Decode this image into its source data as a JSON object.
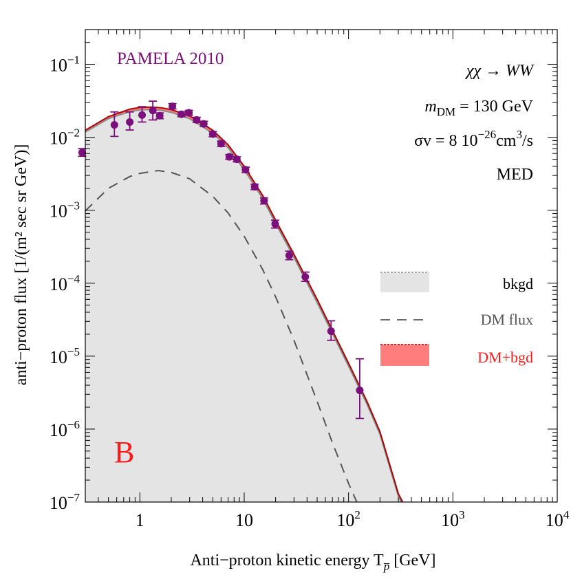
{
  "chart_data": {
    "type": "line",
    "xscale": "log",
    "yscale": "log",
    "xlim": [
      0.3,
      10000
    ],
    "ylim": [
      1e-07,
      0.3
    ],
    "xlabel": "Anti−proton kinetic energy T",
    "xlabel_sub": "p̅",
    "xlabel_unit": " [GeV]",
    "ylabel": "anti−proton flux [1/(m² sec sr GeV)]",
    "x_ticks": [
      {
        "value": 1,
        "label": "1"
      },
      {
        "value": 10,
        "label": "10"
      },
      {
        "value": 100,
        "base": "10",
        "exp": "2"
      },
      {
        "value": 1000,
        "base": "10",
        "exp": "3"
      },
      {
        "value": 10000,
        "base": "10",
        "exp": "4"
      }
    ],
    "y_ticks": [
      {
        "value": 0.1,
        "base": "10",
        "exp": "−1"
      },
      {
        "value": 0.01,
        "base": "10",
        "exp": "−2"
      },
      {
        "value": 0.001,
        "base": "10",
        "exp": "−3"
      },
      {
        "value": 0.0001,
        "base": "10",
        "exp": "−4"
      },
      {
        "value": 1e-05,
        "base": "10",
        "exp": "−5"
      },
      {
        "value": 1e-06,
        "base": "10",
        "exp": "−6"
      },
      {
        "value": 1e-07,
        "base": "10",
        "exp": "−7"
      }
    ],
    "data_label": "PAMELA 2010",
    "panel_label": "B",
    "annotations": {
      "process": "χχ → WW",
      "mass_label": "m",
      "mass_sub": "DM",
      "mass_value": " = 130 GeV",
      "xsec_label": "σv = 8 10",
      "xsec_exp": "−26",
      "xsec_unit": "cm",
      "xsec_unit_exp": "3",
      "xsec_tail": "/s",
      "model": "MED"
    },
    "legend": {
      "position": "right",
      "entries": [
        {
          "label": "bkgd",
          "style": "band",
          "color": "#e4e4e4"
        },
        {
          "label": "DM flux",
          "style": "dashed",
          "color": "#555555"
        },
        {
          "label": "DM+bgd",
          "style": "band",
          "color": "#ff7d7d"
        }
      ]
    },
    "colors": {
      "data": "#7b0f7b",
      "band_bkgd": "#e4e4e4",
      "band_total": "#ff7d7d",
      "line_total": "#b00000",
      "dm_dashed": "#555555",
      "label_text": "#7b0f7b",
      "panel_label": "#ff1a1a",
      "legend_dmbgd_text": "#ff1a1a",
      "legend_dmflux_text": "#555555"
    },
    "series": [
      {
        "name": "PAMELA 2010",
        "type": "scatter_errorbars",
        "points": [
          {
            "x": 0.28,
            "y": 0.0062,
            "ylo": 0.0055,
            "yhi": 0.007
          },
          {
            "x": 0.57,
            "y": 0.0148,
            "ylo": 0.0103,
            "yhi": 0.0223
          },
          {
            "x": 0.8,
            "y": 0.0162,
            "ylo": 0.0126,
            "yhi": 0.0223
          },
          {
            "x": 1.05,
            "y": 0.0202,
            "ylo": 0.0162,
            "yhi": 0.0263
          },
          {
            "x": 1.33,
            "y": 0.0233,
            "ylo": 0.0173,
            "yhi": 0.0313
          },
          {
            "x": 1.55,
            "y": 0.0198,
            "ylo": 0.018,
            "yhi": 0.0216
          },
          {
            "x": 2.05,
            "y": 0.0266,
            "ylo": 0.0245,
            "yhi": 0.029
          },
          {
            "x": 2.5,
            "y": 0.0207,
            "ylo": 0.0192,
            "yhi": 0.0224
          },
          {
            "x": 2.95,
            "y": 0.0217,
            "ylo": 0.0201,
            "yhi": 0.0234
          },
          {
            "x": 3.5,
            "y": 0.0173,
            "ylo": 0.016,
            "yhi": 0.0188
          },
          {
            "x": 4.1,
            "y": 0.0153,
            "ylo": 0.0141,
            "yhi": 0.0166
          },
          {
            "x": 5.0,
            "y": 0.0111,
            "ylo": 0.0102,
            "yhi": 0.012
          },
          {
            "x": 6.0,
            "y": 0.0082,
            "ylo": 0.0075,
            "yhi": 0.0089
          },
          {
            "x": 7.2,
            "y": 0.0054,
            "ylo": 0.005,
            "yhi": 0.0058
          },
          {
            "x": 8.5,
            "y": 0.005,
            "ylo": 0.0046,
            "yhi": 0.0054
          },
          {
            "x": 10.3,
            "y": 0.0036,
            "ylo": 0.0033,
            "yhi": 0.0039
          },
          {
            "x": 12.6,
            "y": 0.0021,
            "ylo": 0.00192,
            "yhi": 0.00228
          },
          {
            "x": 15.5,
            "y": 0.00135,
            "ylo": 0.00122,
            "yhi": 0.00148
          },
          {
            "x": 19.8,
            "y": 0.00065,
            "ylo": 0.00057,
            "yhi": 0.00073
          },
          {
            "x": 27.0,
            "y": 0.00024,
            "ylo": 0.00021,
            "yhi": 0.000275
          },
          {
            "x": 38.5,
            "y": 0.000122,
            "ylo": 0.000106,
            "yhi": 0.000142
          },
          {
            "x": 68.0,
            "y": 2.2e-05,
            "ylo": 1.65e-05,
            "yhi": 3.05e-05
          },
          {
            "x": 128.0,
            "y": 3.4e-06,
            "ylo": 1.4e-06,
            "yhi": 9.2e-06
          }
        ]
      },
      {
        "name": "bkgd",
        "type": "band",
        "x": [
          0.3,
          0.5,
          0.8,
          1.0,
          1.3,
          1.6,
          2.0,
          3.0,
          5.0,
          7.0,
          10,
          15,
          20,
          30,
          50,
          70,
          100,
          150,
          200,
          300,
          320
        ],
        "y": [
          0.0118,
          0.018,
          0.0225,
          0.0238,
          0.024,
          0.0234,
          0.022,
          0.018,
          0.0114,
          0.0072,
          0.0036,
          0.00145,
          0.00066,
          0.000225,
          5.4e-05,
          2.05e-05,
          7.3e-06,
          2.2e-06,
          8.5e-07,
          1.2e-07,
          1e-07
        ]
      },
      {
        "name": "DM+bgd",
        "type": "band",
        "x": [
          0.3,
          0.5,
          0.8,
          1.0,
          1.3,
          1.6,
          2.0,
          3.0,
          5.0,
          7.0,
          10,
          15,
          20,
          30,
          50,
          70,
          100,
          150,
          200,
          300,
          330
        ],
        "y": [
          0.0125,
          0.0192,
          0.0243,
          0.0257,
          0.026,
          0.0254,
          0.024,
          0.0197,
          0.0125,
          0.0079,
          0.004,
          0.0016,
          0.00073,
          0.000248,
          6e-05,
          2.25e-05,
          8e-06,
          2.4e-06,
          9.2e-07,
          1.3e-07,
          1e-07
        ]
      },
      {
        "name": "DM flux",
        "type": "dashed",
        "x": [
          0.3,
          0.5,
          0.8,
          1.0,
          1.5,
          2.0,
          3.0,
          5.0,
          7.0,
          10,
          15,
          20,
          30,
          50,
          70,
          100,
          120
        ],
        "y": [
          0.00098,
          0.002,
          0.0029,
          0.0032,
          0.0035,
          0.0033,
          0.0027,
          0.00155,
          0.00092,
          0.00044,
          0.000155,
          6.5e-05,
          1.65e-05,
          2.4e-06,
          6.5e-07,
          1.8e-07,
          1e-07
        ]
      }
    ]
  }
}
